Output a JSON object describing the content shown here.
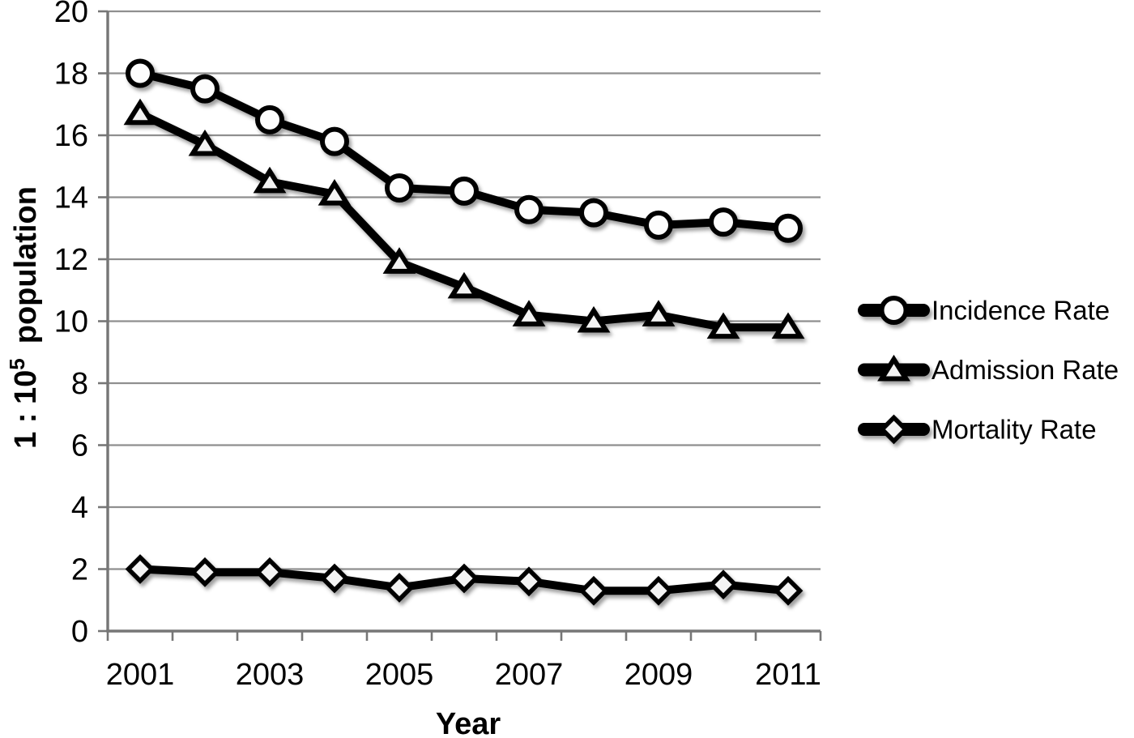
{
  "figure": {
    "background": "#ffffff"
  },
  "chart_data": {
    "type": "line",
    "title": "",
    "xlabel": "Year",
    "ylabel": "1 : 10⁵  population",
    "ylabel_base": "1 : 10",
    "ylabel_superscript": "5",
    "ylabel_rest": "population",
    "x": [
      2001,
      2002,
      2003,
      2004,
      2005,
      2006,
      2007,
      2008,
      2009,
      2010,
      2011
    ],
    "x_tick_labels": [
      2001,
      2003,
      2005,
      2007,
      2009,
      2011
    ],
    "ylim": [
      0,
      20
    ],
    "ytick_step": 2,
    "yticks": [
      0,
      2,
      4,
      6,
      8,
      10,
      12,
      14,
      16,
      18,
      20
    ],
    "grid": true,
    "legend_position": "right",
    "series": [
      {
        "name": "Incidence Rate",
        "marker": "circle",
        "values": [
          18.0,
          17.5,
          16.5,
          15.8,
          14.3,
          14.2,
          13.6,
          13.5,
          13.1,
          13.2,
          13.0
        ]
      },
      {
        "name": "Admission Rate",
        "marker": "triangle",
        "values": [
          16.7,
          15.7,
          14.5,
          14.1,
          11.9,
          11.1,
          10.2,
          10.0,
          10.2,
          9.8,
          9.8
        ]
      },
      {
        "name": "Mortality Rate",
        "marker": "diamond",
        "values": [
          2.0,
          1.9,
          1.9,
          1.7,
          1.4,
          1.7,
          1.6,
          1.3,
          1.3,
          1.5,
          1.3
        ]
      }
    ],
    "colors": {
      "line": "#000000",
      "marker_fill": "#fdfdfd",
      "marker_fill_poly": "#f3f3f3",
      "gridline": "#8f8f8f",
      "axis": "#767676",
      "text": "#000000"
    }
  }
}
